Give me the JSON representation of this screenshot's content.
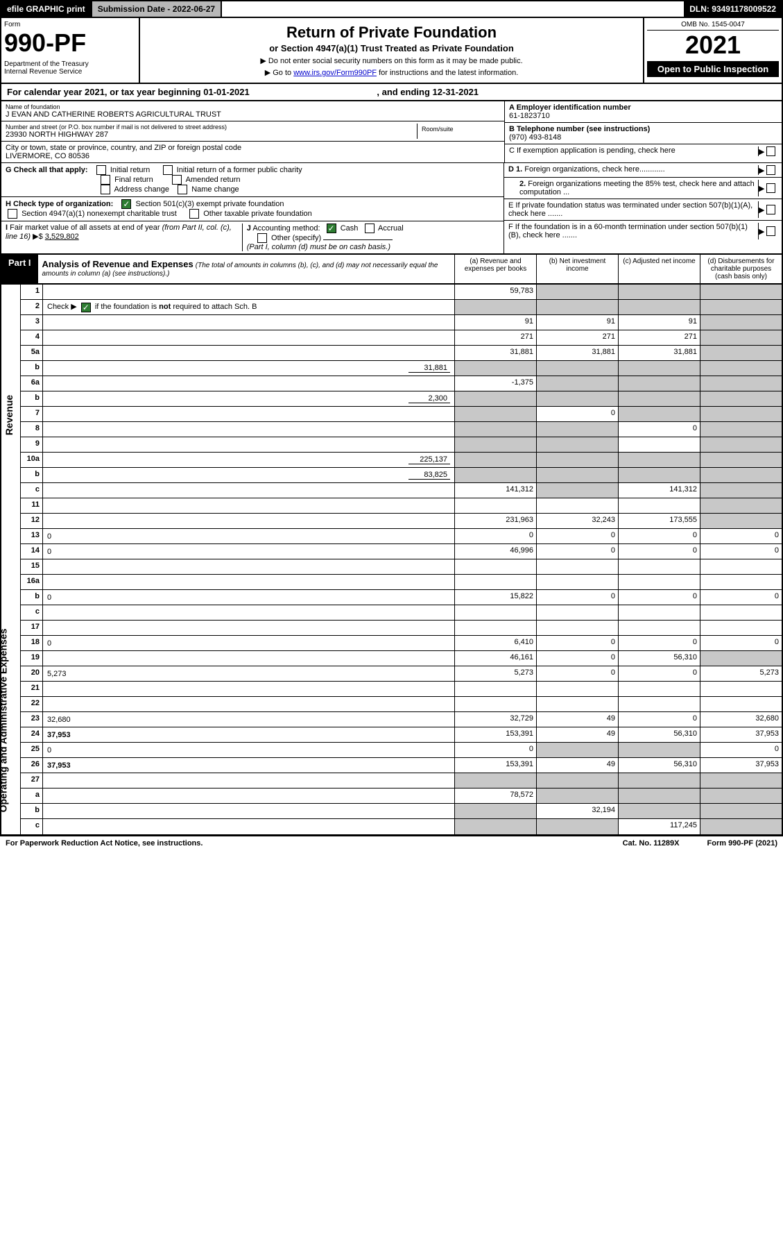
{
  "topbar": {
    "efile": "efile GRAPHIC print",
    "submission": "Submission Date - 2022-06-27",
    "dln": "DLN: 93491178009522"
  },
  "header": {
    "form_label": "Form",
    "form_num": "990-PF",
    "dept": "Department of the Treasury\nInternal Revenue Service",
    "title": "Return of Private Foundation",
    "subtitle": "or Section 4947(a)(1) Trust Treated as Private Foundation",
    "instr1": "▶ Do not enter social security numbers on this form as it may be made public.",
    "instr2": "▶ Go to ",
    "instr2_link": "www.irs.gov/Form990PF",
    "instr2_tail": " for instructions and the latest information.",
    "omb": "OMB No. 1545-0047",
    "year": "2021",
    "open": "Open to Public Inspection"
  },
  "calyear": {
    "prefix": "For calendar year 2021, or tax year beginning ",
    "begin": "01-01-2021",
    "mid": " , and ending ",
    "end": "12-31-2021"
  },
  "foundation": {
    "name_label": "Name of foundation",
    "name": "J EVAN AND CATHERINE ROBERTS AGRICULTURAL TRUST",
    "addr_label": "Number and street (or P.O. box number if mail is not delivered to street address)",
    "addr": "23930 NORTH HIGHWAY 287",
    "room_label": "Room/suite",
    "city_label": "City or town, state or province, country, and ZIP or foreign postal code",
    "city": "LIVERMORE, CO  80536",
    "a_label": "A Employer identification number",
    "a_val": "61-1823710",
    "b_label": "B Telephone number (see instructions)",
    "b_val": "(970) 493-8148",
    "c_label": "C If exemption application is pending, check here",
    "d1_label": "D 1. Foreign organizations, check here............",
    "d2_label": "2. Foreign organizations meeting the 85% test, check here and attach computation ...",
    "e_label": "E  If private foundation status was terminated under section 507(b)(1)(A), check here .......",
    "f_label": "F  If the foundation is in a 60-month termination under section 507(b)(1)(B), check here .......",
    "g_label": "G Check all that apply:",
    "g_opts": [
      "Initial return",
      "Initial return of a former public charity",
      "Final return",
      "Amended return",
      "Address change",
      "Name change"
    ],
    "h_label": "H Check type of organization:",
    "h_opts": [
      "Section 501(c)(3) exempt private foundation",
      "Section 4947(a)(1) nonexempt charitable trust",
      "Other taxable private foundation"
    ],
    "i_label": "I Fair market value of all assets at end of year (from Part II, col. (c), line 16)",
    "i_val": "3,529,802",
    "j_label": "J Accounting method:",
    "j_opts": [
      "Cash",
      "Accrual",
      "Other (specify)"
    ],
    "j_note": "(Part I, column (d) must be on cash basis.)"
  },
  "part1": {
    "label": "Part I",
    "title": "Analysis of Revenue and Expenses",
    "note": "(The total of amounts in columns (b), (c), and (d) may not necessarily equal the amounts in column (a) (see instructions).)",
    "cols": [
      "(a)  Revenue and expenses per books",
      "(b)  Net investment income",
      "(c)  Adjusted net income",
      "(d)  Disbursements for charitable purposes (cash basis only)"
    ]
  },
  "side_labels": [
    "Revenue",
    "Operating and Administrative Expenses"
  ],
  "rows": [
    {
      "n": "1",
      "d": "",
      "a": "59,783",
      "b": "",
      "c": "",
      "bg": true,
      "cg": true,
      "dg": true
    },
    {
      "n": "2",
      "d": "",
      "a": "",
      "b": "",
      "c": "",
      "ag": true,
      "bg": true,
      "cg": true,
      "dg": true,
      "checked": true
    },
    {
      "n": "3",
      "d": "",
      "a": "91",
      "b": "91",
      "c": "91",
      "dg": true
    },
    {
      "n": "4",
      "d": "",
      "a": "271",
      "b": "271",
      "c": "271",
      "dg": true
    },
    {
      "n": "5a",
      "d": "",
      "a": "31,881",
      "b": "31,881",
      "c": "31,881",
      "dg": true
    },
    {
      "n": "b",
      "d": "",
      "inline": "31,881",
      "a": "",
      "b": "",
      "c": "",
      "ag": true,
      "bg": true,
      "cg": true,
      "dg": true
    },
    {
      "n": "6a",
      "d": "",
      "a": "-1,375",
      "b": "",
      "c": "",
      "bg": true,
      "cg": true,
      "dg": true
    },
    {
      "n": "b",
      "d": "",
      "inline": "2,300",
      "a": "",
      "b": "",
      "c": "",
      "ag": true,
      "bg": true,
      "cg": true,
      "dg": true
    },
    {
      "n": "7",
      "d": "",
      "a": "",
      "b": "0",
      "c": "",
      "ag": true,
      "cg": true,
      "dg": true
    },
    {
      "n": "8",
      "d": "",
      "a": "",
      "b": "",
      "c": "0",
      "ag": true,
      "bg": true,
      "dg": true
    },
    {
      "n": "9",
      "d": "",
      "a": "",
      "b": "",
      "c": "",
      "ag": true,
      "bg": true,
      "dg": true
    },
    {
      "n": "10a",
      "d": "",
      "inline": "225,137",
      "a": "",
      "b": "",
      "c": "",
      "ag": true,
      "bg": true,
      "cg": true,
      "dg": true
    },
    {
      "n": "b",
      "d": "",
      "inline": "83,825",
      "a": "",
      "b": "",
      "c": "",
      "ag": true,
      "bg": true,
      "cg": true,
      "dg": true
    },
    {
      "n": "c",
      "d": "",
      "a": "141,312",
      "b": "",
      "c": "141,312",
      "bg": true,
      "dg": true
    },
    {
      "n": "11",
      "d": "",
      "a": "",
      "b": "",
      "c": "",
      "dg": true
    },
    {
      "n": "12",
      "d": "",
      "bold": true,
      "a": "231,963",
      "b": "32,243",
      "c": "173,555",
      "dg": true
    },
    {
      "n": "13",
      "d": "0",
      "a": "0",
      "b": "0",
      "c": "0"
    },
    {
      "n": "14",
      "d": "0",
      "a": "46,996",
      "b": "0",
      "c": "0"
    },
    {
      "n": "15",
      "d": "",
      "a": "",
      "b": "",
      "c": ""
    },
    {
      "n": "16a",
      "d": "",
      "a": "",
      "b": "",
      "c": ""
    },
    {
      "n": "b",
      "d": "0",
      "a": "15,822",
      "b": "0",
      "c": "0"
    },
    {
      "n": "c",
      "d": "",
      "a": "",
      "b": "",
      "c": ""
    },
    {
      "n": "17",
      "d": "",
      "a": "",
      "b": "",
      "c": ""
    },
    {
      "n": "18",
      "d": "0",
      "a": "6,410",
      "b": "0",
      "c": "0"
    },
    {
      "n": "19",
      "d": "",
      "a": "46,161",
      "b": "0",
      "c": "56,310",
      "dg": true
    },
    {
      "n": "20",
      "d": "5,273",
      "a": "5,273",
      "b": "0",
      "c": "0"
    },
    {
      "n": "21",
      "d": "",
      "a": "",
      "b": "",
      "c": ""
    },
    {
      "n": "22",
      "d": "",
      "a": "",
      "b": "",
      "c": ""
    },
    {
      "n": "23",
      "d": "32,680",
      "a": "32,729",
      "b": "49",
      "c": "0"
    },
    {
      "n": "24",
      "d": "37,953",
      "bold": true,
      "a": "153,391",
      "b": "49",
      "c": "56,310"
    },
    {
      "n": "25",
      "d": "0",
      "a": "0",
      "b": "",
      "c": "",
      "bg": true,
      "cg": true
    },
    {
      "n": "26",
      "d": "37,953",
      "bold": true,
      "a": "153,391",
      "b": "49",
      "c": "56,310"
    },
    {
      "n": "27",
      "d": "",
      "a": "",
      "b": "",
      "c": "",
      "ag": true,
      "bg": true,
      "cg": true,
      "dg": true
    },
    {
      "n": "a",
      "d": "",
      "bold": true,
      "a": "78,572",
      "b": "",
      "c": "",
      "bg": true,
      "cg": true,
      "dg": true
    },
    {
      "n": "b",
      "d": "",
      "bold": true,
      "a": "",
      "b": "32,194",
      "c": "",
      "ag": true,
      "cg": true,
      "dg": true
    },
    {
      "n": "c",
      "d": "",
      "bold": true,
      "a": "",
      "b": "",
      "c": "117,245",
      "ag": true,
      "bg": true,
      "dg": true
    }
  ],
  "footer": {
    "left": "For Paperwork Reduction Act Notice, see instructions.",
    "mid": "Cat. No. 11289X",
    "right": "Form 990-PF (2021)"
  },
  "colors": {
    "black": "#000000",
    "grey_header": "#b8b8b8",
    "grey_cell": "#c8c8c8",
    "link": "#0000cc",
    "check_green": "#2e7d32"
  }
}
